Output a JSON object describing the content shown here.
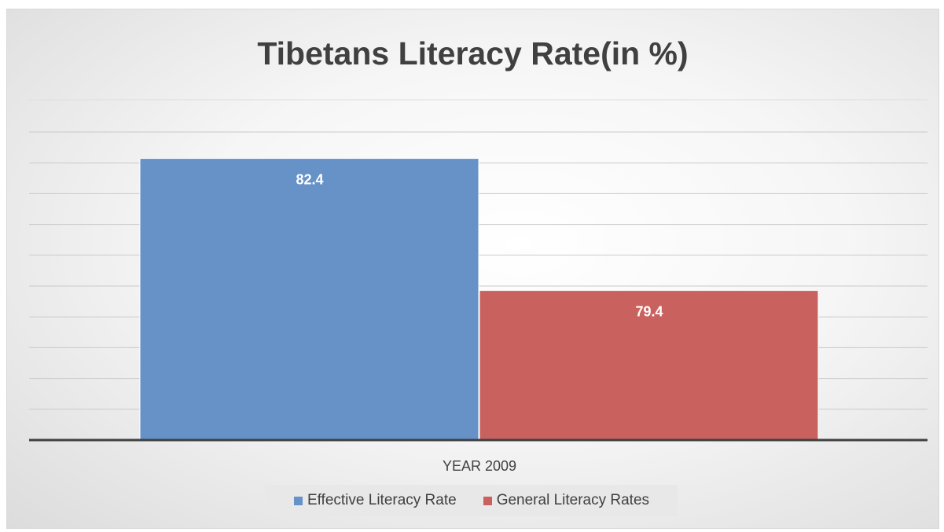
{
  "chart_data": {
    "type": "bar",
    "title": "Tibetans Literacy Rate(in %)",
    "categories": [
      "YEAR 2009"
    ],
    "series": [
      {
        "name": "Effective Literacy Rate",
        "values": [
          82.4
        ],
        "color": "#6692c8"
      },
      {
        "name": "General Literacy Rates",
        "values": [
          79.4
        ],
        "color": "#c9625f"
      }
    ],
    "data_labels": [
      "82.4",
      "79.4"
    ],
    "xlabel": "",
    "ylabel": "",
    "ylim": [
      76,
      83
    ],
    "grid": true,
    "legend_position": "bottom"
  }
}
